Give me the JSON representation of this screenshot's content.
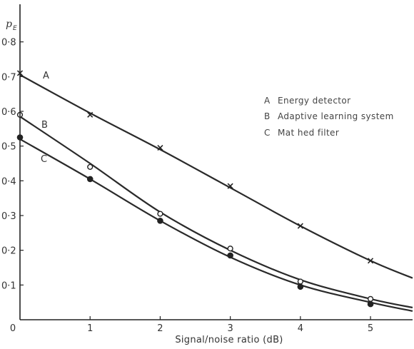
{
  "chart_data": {
    "type": "line",
    "title": "",
    "xlabel": "Signal/noise ratio (dB)",
    "ylabel": {
      "main": "p",
      "sub": "E"
    },
    "xlim": [
      0,
      5.6
    ],
    "ylim": [
      0,
      0.9
    ],
    "x_ticks": [
      {
        "value": 0,
        "label": "0"
      },
      {
        "value": 1,
        "label": "1"
      },
      {
        "value": 2,
        "label": "2"
      },
      {
        "value": 3,
        "label": "3"
      },
      {
        "value": 4,
        "label": "4"
      },
      {
        "value": 5,
        "label": "5"
      }
    ],
    "y_ticks": [
      {
        "value": 0.1,
        "label": "0·1"
      },
      {
        "value": 0.2,
        "label": "0·2"
      },
      {
        "value": 0.3,
        "label": "0·3"
      },
      {
        "value": 0.4,
        "label": "0·4"
      },
      {
        "value": 0.5,
        "label": "0·5"
      },
      {
        "value": 0.6,
        "label": "0·6"
      },
      {
        "value": 0.7,
        "label": "0·7"
      },
      {
        "value": 0.8,
        "label": "0·8"
      }
    ],
    "grid": false,
    "legend_position": "top-right",
    "legend": [
      {
        "key": "A",
        "text": "Energy detector"
      },
      {
        "key": "B",
        "text": "Adaptive learning system"
      },
      {
        "key": "C",
        "text": "Mat hed filter"
      }
    ],
    "series": [
      {
        "key": "A",
        "marker": "cross",
        "x": [
          0,
          1,
          2,
          3,
          4,
          5
        ],
        "y": [
          0.71,
          0.59,
          0.495,
          0.385,
          0.27,
          0.17
        ],
        "curve_x": [
          0,
          1,
          2,
          3,
          4,
          5,
          5.6
        ],
        "curve_y": [
          0.705,
          0.595,
          0.49,
          0.38,
          0.27,
          0.17,
          0.12
        ]
      },
      {
        "key": "B",
        "marker": "circle-open",
        "x": [
          0,
          1,
          2,
          3,
          4,
          5
        ],
        "y": [
          0.59,
          0.44,
          0.305,
          0.205,
          0.11,
          0.06
        ],
        "curve_x": [
          0,
          1,
          2,
          3,
          4,
          5,
          5.6
        ],
        "curve_y": [
          0.585,
          0.45,
          0.31,
          0.2,
          0.115,
          0.06,
          0.035
        ]
      },
      {
        "key": "C",
        "marker": "circle-filled",
        "x": [
          0,
          1,
          2,
          3,
          4,
          5
        ],
        "y": [
          0.525,
          0.405,
          0.285,
          0.185,
          0.095,
          0.045
        ],
        "curve_x": [
          0,
          1,
          2,
          3,
          4,
          5,
          5.6
        ],
        "curve_y": [
          0.52,
          0.405,
          0.285,
          0.18,
          0.1,
          0.05,
          0.025
        ]
      }
    ]
  }
}
